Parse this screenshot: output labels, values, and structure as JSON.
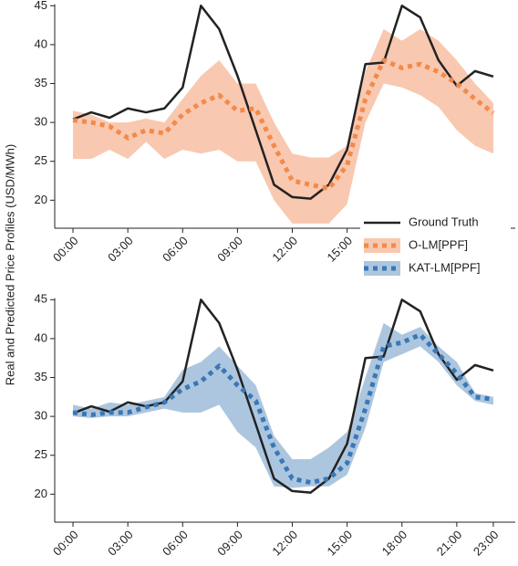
{
  "chart_data": [
    {
      "type": "line",
      "ylabel": "Real and Predicted Price Profiles (USD/MWh)",
      "x": [
        0,
        1,
        2,
        3,
        4,
        5,
        6,
        7,
        8,
        9,
        10,
        11,
        12,
        13,
        14,
        15,
        16,
        17,
        18,
        19,
        20,
        21,
        22,
        23
      ],
      "xlim": [
        -1,
        24.2
      ],
      "ylim": [
        16.4,
        45.2
      ],
      "xticks": [
        {
          "value": 0,
          "label": "00:00"
        },
        {
          "value": 3,
          "label": "03:00"
        },
        {
          "value": 6,
          "label": "06:00"
        },
        {
          "value": 9,
          "label": "09:00"
        },
        {
          "value": 12,
          "label": "12:00"
        },
        {
          "value": 15,
          "label": "15:00"
        }
      ],
      "yticks": [
        20,
        25,
        30,
        35,
        40,
        45
      ],
      "series": [
        {
          "name": "Ground Truth",
          "color": "#222222",
          "style": "solid",
          "values": [
            30.4,
            31.3,
            30.6,
            31.8,
            31.3,
            31.8,
            34.5,
            45,
            42,
            36,
            29,
            22,
            20.4,
            20.2,
            22,
            26.5,
            37.5,
            37.7,
            45,
            43.5,
            38,
            34.7,
            36.6,
            35.9
          ]
        },
        {
          "name": "O-LM[PPF]",
          "color": "#f28a4a",
          "band_color": "#f9c8b0",
          "style": "dotted",
          "values": [
            30.3,
            30,
            29.5,
            28,
            29,
            28.6,
            31,
            32.5,
            33.5,
            31.5,
            31.8,
            27,
            22.5,
            22,
            21.5,
            24.5,
            33,
            38,
            37,
            37.5,
            36.5,
            35,
            33,
            31.2
          ],
          "band_low": [
            25.3,
            25.3,
            26.5,
            25.3,
            27.5,
            25.3,
            26.5,
            26,
            26.5,
            25,
            25,
            20,
            17,
            17,
            17,
            19.5,
            30,
            35,
            34.5,
            33.5,
            32,
            29,
            27,
            26
          ],
          "band_high": [
            31.5,
            31,
            30,
            30,
            30.5,
            30,
            33,
            36,
            38,
            35,
            35,
            30,
            26,
            25.5,
            25.5,
            27,
            36.5,
            42,
            40.5,
            42,
            40.5,
            38,
            35,
            32.5
          ]
        }
      ]
    },
    {
      "type": "line",
      "x": [
        0,
        1,
        2,
        3,
        4,
        5,
        6,
        7,
        8,
        9,
        10,
        11,
        12,
        13,
        14,
        15,
        16,
        17,
        18,
        19,
        20,
        21,
        22,
        23
      ],
      "xlim": [
        -1,
        24.2
      ],
      "ylim": [
        16.4,
        45.2
      ],
      "xticks": [
        {
          "value": 0,
          "label": "00:00"
        },
        {
          "value": 3,
          "label": "03:00"
        },
        {
          "value": 6,
          "label": "06:00"
        },
        {
          "value": 9,
          "label": "09:00"
        },
        {
          "value": 12,
          "label": "12:00"
        },
        {
          "value": 15,
          "label": "15:00"
        },
        {
          "value": 18,
          "label": "18:00"
        },
        {
          "value": 21,
          "label": "21:00"
        },
        {
          "value": 23,
          "label": "23:00"
        }
      ],
      "yticks": [
        20,
        25,
        30,
        35,
        40,
        45
      ],
      "series": [
        {
          "color": "#222222",
          "style": "solid",
          "values": [
            30.4,
            31.3,
            30.6,
            31.8,
            31.3,
            31.8,
            34.5,
            45,
            42,
            36,
            29,
            22,
            20.4,
            20.2,
            22,
            26.5,
            37.5,
            37.7,
            45,
            43.5,
            38,
            34.7,
            36.6,
            35.9
          ]
        },
        {
          "name": "KAT-LM[PPF]",
          "color": "#3a78b5",
          "band_color": "#adc6df",
          "style": "dotted",
          "values": [
            30.5,
            30.2,
            30.5,
            30.5,
            31.2,
            31.8,
            33.5,
            34.5,
            36.5,
            34,
            32,
            26,
            22,
            21.5,
            22,
            24,
            31,
            39,
            39.5,
            40.5,
            38,
            35.5,
            32.5,
            32.2
          ],
          "band_low": [
            30,
            29.8,
            30,
            30,
            30.5,
            31,
            30.5,
            30.5,
            31.5,
            28,
            26,
            21,
            20.8,
            21,
            21,
            22.5,
            28.5,
            37,
            38,
            39,
            37,
            34,
            32,
            31.5
          ],
          "band_high": [
            31.5,
            31,
            31.8,
            31.5,
            32,
            32.5,
            36,
            37,
            39,
            36.5,
            34,
            27.5,
            24.5,
            24.5,
            26,
            28,
            35,
            42,
            40.5,
            41.5,
            39,
            37,
            33,
            32.5
          ]
        }
      ]
    }
  ]
}
